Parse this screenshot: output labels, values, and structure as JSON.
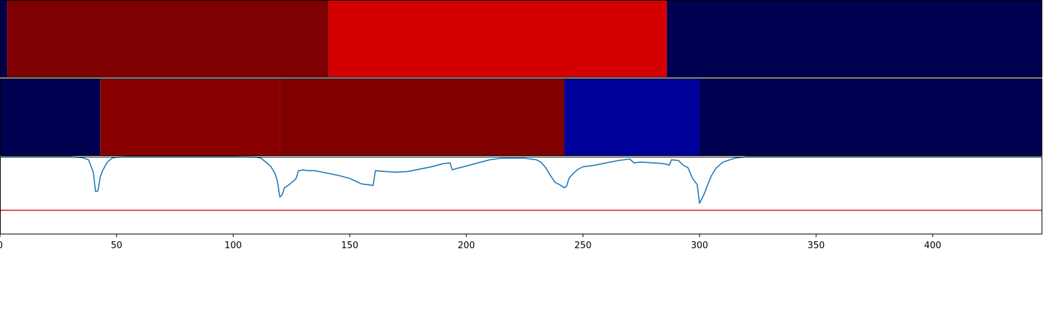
{
  "chart_data": {
    "type": "heatmap",
    "xlim": [
      0,
      447
    ],
    "x_ticks": [
      "0",
      "50",
      "100",
      "150",
      "200",
      "250",
      "300",
      "350",
      "400"
    ],
    "x_tick_values": [
      0,
      50,
      100,
      150,
      200,
      250,
      300,
      350,
      400
    ],
    "tracks": [
      {
        "type": "segments",
        "segments": [
          {
            "start": 0,
            "end": 3,
            "color": "#000050"
          },
          {
            "start": 3,
            "end": 141,
            "color": "#7f0000"
          },
          {
            "start": 141,
            "end": 286,
            "color": "#d40000"
          },
          {
            "start": 286,
            "end": 447,
            "color": "#000050"
          }
        ]
      },
      {
        "type": "segments",
        "segments": [
          {
            "start": 0,
            "end": 43,
            "color": "#000050"
          },
          {
            "start": 43,
            "end": 120,
            "color": "#880000"
          },
          {
            "start": 120,
            "end": 242,
            "color": "#800000"
          },
          {
            "start": 242,
            "end": 300,
            "color": "#00009a"
          },
          {
            "start": 300,
            "end": 447,
            "color": "#000050"
          }
        ]
      },
      {
        "type": "line",
        "ylim": [
          0,
          1
        ],
        "line_color": "#1f77b4",
        "threshold": 0.31,
        "threshold_color": "#d62728",
        "points": [
          [
            0,
            1.0
          ],
          [
            30,
            1.0
          ],
          [
            35,
            0.99
          ],
          [
            38,
            0.96
          ],
          [
            40,
            0.8
          ],
          [
            41,
            0.55
          ],
          [
            42,
            0.56
          ],
          [
            43,
            0.74
          ],
          [
            44,
            0.82
          ],
          [
            46,
            0.93
          ],
          [
            48,
            0.98
          ],
          [
            50,
            0.995
          ],
          [
            55,
            1.0
          ],
          [
            100,
            1.0
          ],
          [
            110,
            0.995
          ],
          [
            112,
            0.98
          ],
          [
            114,
            0.93
          ],
          [
            116,
            0.88
          ],
          [
            118,
            0.78
          ],
          [
            119,
            0.68
          ],
          [
            120,
            0.48
          ],
          [
            121,
            0.51
          ],
          [
            122,
            0.6
          ],
          [
            124,
            0.64
          ],
          [
            126,
            0.69
          ],
          [
            127,
            0.72
          ],
          [
            128,
            0.82
          ],
          [
            130,
            0.83
          ],
          [
            132,
            0.82
          ],
          [
            135,
            0.82
          ],
          [
            140,
            0.79
          ],
          [
            145,
            0.76
          ],
          [
            150,
            0.72
          ],
          [
            155,
            0.65
          ],
          [
            160,
            0.63
          ],
          [
            161,
            0.82
          ],
          [
            165,
            0.81
          ],
          [
            170,
            0.8
          ],
          [
            175,
            0.81
          ],
          [
            180,
            0.84
          ],
          [
            185,
            0.87
          ],
          [
            190,
            0.91
          ],
          [
            193,
            0.92
          ],
          [
            194,
            0.83
          ],
          [
            196,
            0.85
          ],
          [
            200,
            0.88
          ],
          [
            205,
            0.92
          ],
          [
            210,
            0.96
          ],
          [
            215,
            0.98
          ],
          [
            220,
            0.98
          ],
          [
            225,
            0.98
          ],
          [
            230,
            0.96
          ],
          [
            232,
            0.93
          ],
          [
            234,
            0.86
          ],
          [
            236,
            0.76
          ],
          [
            238,
            0.67
          ],
          [
            240,
            0.64
          ],
          [
            242,
            0.6
          ],
          [
            243,
            0.62
          ],
          [
            244,
            0.72
          ],
          [
            246,
            0.79
          ],
          [
            248,
            0.84
          ],
          [
            250,
            0.87
          ],
          [
            255,
            0.89
          ],
          [
            260,
            0.92
          ],
          [
            265,
            0.95
          ],
          [
            270,
            0.97
          ],
          [
            272,
            0.92
          ],
          [
            275,
            0.93
          ],
          [
            280,
            0.92
          ],
          [
            285,
            0.91
          ],
          [
            287,
            0.89
          ],
          [
            288,
            0.96
          ],
          [
            291,
            0.95
          ],
          [
            293,
            0.89
          ],
          [
            295,
            0.86
          ],
          [
            297,
            0.72
          ],
          [
            299,
            0.64
          ],
          [
            300,
            0.4
          ],
          [
            302,
            0.52
          ],
          [
            303,
            0.6
          ],
          [
            305,
            0.75
          ],
          [
            307,
            0.85
          ],
          [
            310,
            0.93
          ],
          [
            315,
            0.98
          ],
          [
            320,
            1.0
          ],
          [
            447,
            1.0
          ]
        ]
      }
    ]
  }
}
